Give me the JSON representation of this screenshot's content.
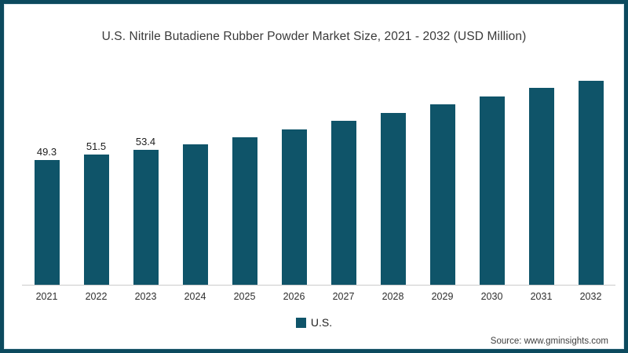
{
  "frame": {
    "border_color": "#0c4a5e",
    "background": "#ffffff"
  },
  "title": "U.S. Nitrile Butadiene Rubber Powder Market Size, 2021 - 2032 (USD Million)",
  "legend": {
    "swatch_color": "#0f5469",
    "label": "U.S."
  },
  "source": "Source: www.gminsights.com",
  "chart_data": {
    "type": "bar",
    "title": "U.S. Nitrile Butadiene Rubber Powder Market Size, 2021 - 2032 (USD Million)",
    "categories": [
      "2021",
      "2022",
      "2023",
      "2024",
      "2025",
      "2026",
      "2027",
      "2028",
      "2029",
      "2030",
      "2031",
      "2032"
    ],
    "series": [
      {
        "name": "U.S.",
        "values": [
          49.3,
          51.5,
          53.4,
          55.7,
          58.4,
          61.6,
          64.8,
          68.1,
          71.4,
          74.6,
          77.9,
          80.8
        ]
      }
    ],
    "data_labels": [
      "49.3",
      "51.5",
      "53.4",
      "",
      "",
      "",
      "",
      "",
      "",
      "",
      "",
      ""
    ],
    "xlabel": "",
    "ylabel": "",
    "ylim": [
      0,
      85
    ],
    "grid": false,
    "y_axis_visible": false,
    "legend_position": "bottom",
    "bar_color": "#0f5469",
    "axis_line_color": "#cccccc"
  }
}
